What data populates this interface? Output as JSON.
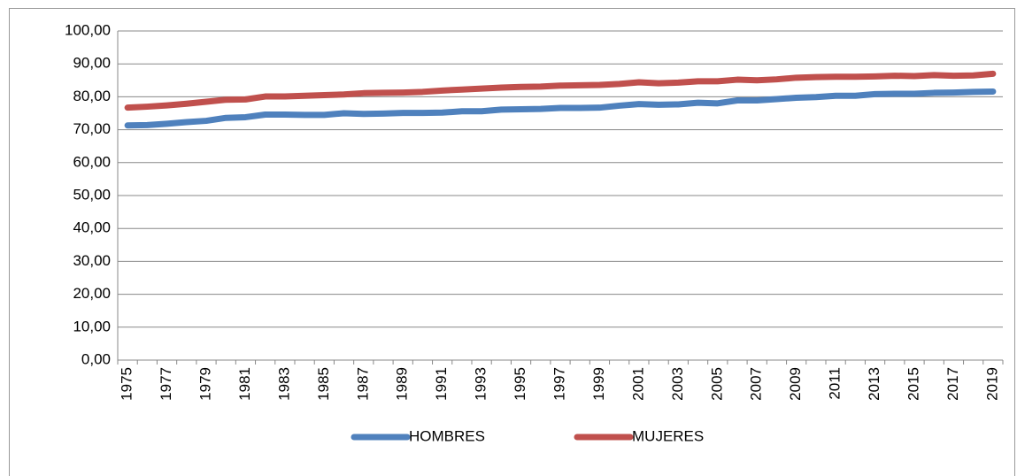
{
  "chart_data": {
    "type": "line",
    "categories": [
      "1975",
      null,
      "1977",
      null,
      "1979",
      null,
      "1981",
      null,
      "1983",
      null,
      "1985",
      null,
      "1987",
      null,
      "1989",
      null,
      "1991",
      null,
      "1993",
      null,
      "1995",
      null,
      "1997",
      null,
      "1999",
      null,
      "2001",
      null,
      "2003",
      null,
      "2005",
      null,
      "2007",
      null,
      "2009",
      null,
      "2011",
      null,
      "2013",
      null,
      "2015",
      null,
      "2017",
      null,
      "2019"
    ],
    "series": [
      {
        "name": "HOMBRES",
        "color": "#4f81bd",
        "values": [
          71.3,
          71.4,
          71.8,
          72.3,
          72.7,
          73.6,
          73.8,
          74.6,
          74.6,
          74.5,
          74.5,
          75.0,
          74.8,
          74.9,
          75.1,
          75.1,
          75.2,
          75.6,
          75.6,
          76.1,
          76.2,
          76.3,
          76.6,
          76.6,
          76.7,
          77.3,
          77.8,
          77.6,
          77.7,
          78.2,
          78.0,
          78.9,
          78.9,
          79.3,
          79.7,
          79.9,
          80.3,
          80.3,
          80.8,
          80.9,
          80.9,
          81.2,
          81.3,
          81.5,
          81.6
        ]
      },
      {
        "name": "MUJERES",
        "color": "#c0504d",
        "values": [
          76.7,
          77.0,
          77.4,
          77.9,
          78.5,
          79.1,
          79.2,
          80.1,
          80.1,
          80.3,
          80.5,
          80.7,
          81.1,
          81.2,
          81.3,
          81.5,
          81.9,
          82.2,
          82.5,
          82.8,
          83.0,
          83.1,
          83.4,
          83.5,
          83.6,
          83.9,
          84.4,
          84.1,
          84.3,
          84.7,
          84.7,
          85.2,
          85.0,
          85.3,
          85.8,
          86.0,
          86.1,
          86.1,
          86.2,
          86.4,
          86.3,
          86.6,
          86.4,
          86.5,
          87.0
        ]
      }
    ],
    "ylim": [
      0,
      100
    ],
    "yticks": [
      {
        "value": 0,
        "label": "0,00"
      },
      {
        "value": 10,
        "label": "10,00"
      },
      {
        "value": 20,
        "label": "20,00"
      },
      {
        "value": 30,
        "label": "30,00"
      },
      {
        "value": 40,
        "label": "40,00"
      },
      {
        "value": 50,
        "label": "50,00"
      },
      {
        "value": 60,
        "label": "60,00"
      },
      {
        "value": 70,
        "label": "70,00"
      },
      {
        "value": 80,
        "label": "80,00"
      },
      {
        "value": 90,
        "label": "90,00"
      },
      {
        "value": 100,
        "label": "100,00"
      }
    ],
    "grid": true,
    "legend": "bottom"
  }
}
